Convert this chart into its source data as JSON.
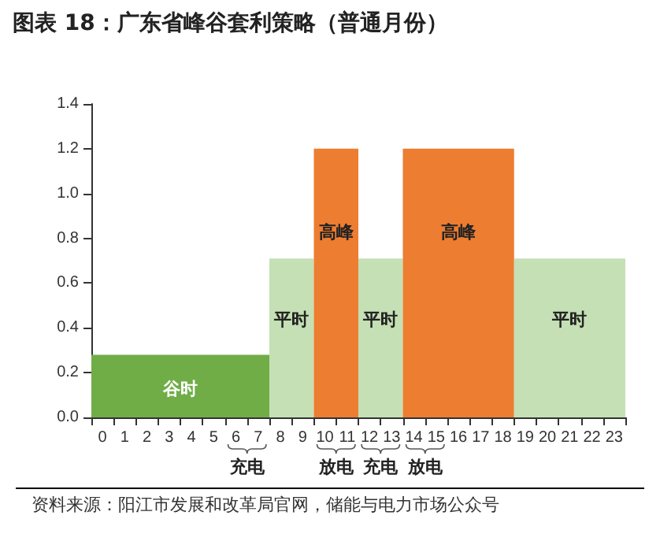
{
  "chart_data": {
    "type": "histogram",
    "title": "图表 18：广东省峰谷套利策略（普通月份）",
    "bins": [
      0,
      8,
      10,
      12,
      14,
      19,
      24
    ],
    "values": [
      0.28,
      0.71,
      1.2,
      0.71,
      1.2,
      0.71
    ],
    "colors": [
      "#70ad47",
      "#c5e0b4",
      "#ed7d31",
      "#c5e0b4",
      "#ed7d31",
      "#c5e0b4"
    ],
    "xlim": [
      0,
      24
    ],
    "xticks": [
      {
        "value": 0,
        "label": null
      },
      {
        "value": 0.5,
        "label": "0"
      },
      {
        "value": 1,
        "label": null
      },
      {
        "value": 1.5,
        "label": "1"
      },
      {
        "value": 2,
        "label": null
      },
      {
        "value": 2.5,
        "label": "2"
      },
      {
        "value": 3,
        "label": null
      },
      {
        "value": 3.5,
        "label": "3"
      },
      {
        "value": 4,
        "label": null
      },
      {
        "value": 4.5,
        "label": "4"
      },
      {
        "value": 5,
        "label": null
      },
      {
        "value": 5.5,
        "label": "5"
      },
      {
        "value": 6,
        "label": null
      },
      {
        "value": 6.5,
        "label": "6"
      },
      {
        "value": 7,
        "label": null
      },
      {
        "value": 7.5,
        "label": "7"
      },
      {
        "value": 8,
        "label": null
      },
      {
        "value": 8.5,
        "label": "8"
      },
      {
        "value": 9,
        "label": null
      },
      {
        "value": 9.5,
        "label": "9"
      },
      {
        "value": 10,
        "label": null
      },
      {
        "value": 10.5,
        "label": "10"
      },
      {
        "value": 11,
        "label": null
      },
      {
        "value": 11.5,
        "label": "11"
      },
      {
        "value": 12,
        "label": null
      },
      {
        "value": 12.5,
        "label": "12"
      },
      {
        "value": 13,
        "label": null
      },
      {
        "value": 13.5,
        "label": "13"
      },
      {
        "value": 14,
        "label": null
      },
      {
        "value": 14.5,
        "label": "14"
      },
      {
        "value": 15,
        "label": null
      },
      {
        "value": 15.5,
        "label": "15"
      },
      {
        "value": 16,
        "label": null
      },
      {
        "value": 16.5,
        "label": "16"
      },
      {
        "value": 17,
        "label": null
      },
      {
        "value": 17.5,
        "label": "17"
      },
      {
        "value": 18,
        "label": null
      },
      {
        "value": 18.5,
        "label": "18"
      },
      {
        "value": 19,
        "label": null
      },
      {
        "value": 19.5,
        "label": "19"
      },
      {
        "value": 20,
        "label": null
      },
      {
        "value": 20.5,
        "label": "20"
      },
      {
        "value": 21,
        "label": null
      },
      {
        "value": 21.5,
        "label": "21"
      },
      {
        "value": 22,
        "label": null
      },
      {
        "value": 22.5,
        "label": "22"
      },
      {
        "value": 23,
        "label": null
      },
      {
        "value": 23.5,
        "label": "23"
      },
      {
        "value": 24,
        "label": null
      }
    ],
    "ylim": [
      0,
      1.4
    ],
    "yticks": [
      {
        "value": 0,
        "label": "0.0"
      },
      {
        "value": 0.2,
        "label": "0.2"
      },
      {
        "value": 0.4,
        "label": "0.4"
      },
      {
        "value": 0.6,
        "label": "0.6"
      },
      {
        "value": 0.8,
        "label": "0.8"
      },
      {
        "value": 1,
        "label": "1.0"
      },
      {
        "value": 1.2,
        "label": "1.2"
      },
      {
        "value": 1.4,
        "label": "1.4"
      }
    ],
    "grid": false,
    "annotations": [
      "谷时",
      "平时",
      "高峰",
      "平时",
      "高峰",
      "平时",
      "充电",
      "放电",
      "充电",
      "放电",
      "资料来源：阳江市发展和改革局官网，储能与电力市场公众号"
    ]
  }
}
